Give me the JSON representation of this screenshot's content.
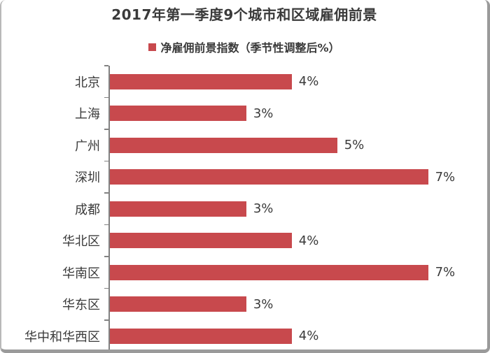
{
  "title": "2017年第一季度9个城市和区域雇佣前景",
  "legend": {
    "label": "净雇佣前景指数（季节性调整后%）",
    "marker_color": "#c8494d"
  },
  "chart_data": {
    "type": "bar",
    "orientation": "horizontal",
    "title": "2017年第一季度9个城市和区域雇佣前景",
    "legend": "净雇佣前景指数（季节性调整后%）",
    "categories": [
      "北京",
      "上海",
      "广州",
      "深圳",
      "成都",
      "华北区",
      "华南区",
      "华东区",
      "华中和华西区"
    ],
    "values": [
      4,
      3,
      5,
      7,
      3,
      4,
      7,
      3,
      4
    ],
    "value_labels": [
      "4%",
      "3%",
      "5%",
      "7%",
      "3%",
      "4%",
      "7%",
      "3%",
      "4%"
    ],
    "xlim": [
      0,
      8.3
    ],
    "grid": false,
    "bar_color": "#c8494d",
    "axis_color": "#828282",
    "text_color": "#3a3a3a",
    "legend_position": "top-center"
  }
}
